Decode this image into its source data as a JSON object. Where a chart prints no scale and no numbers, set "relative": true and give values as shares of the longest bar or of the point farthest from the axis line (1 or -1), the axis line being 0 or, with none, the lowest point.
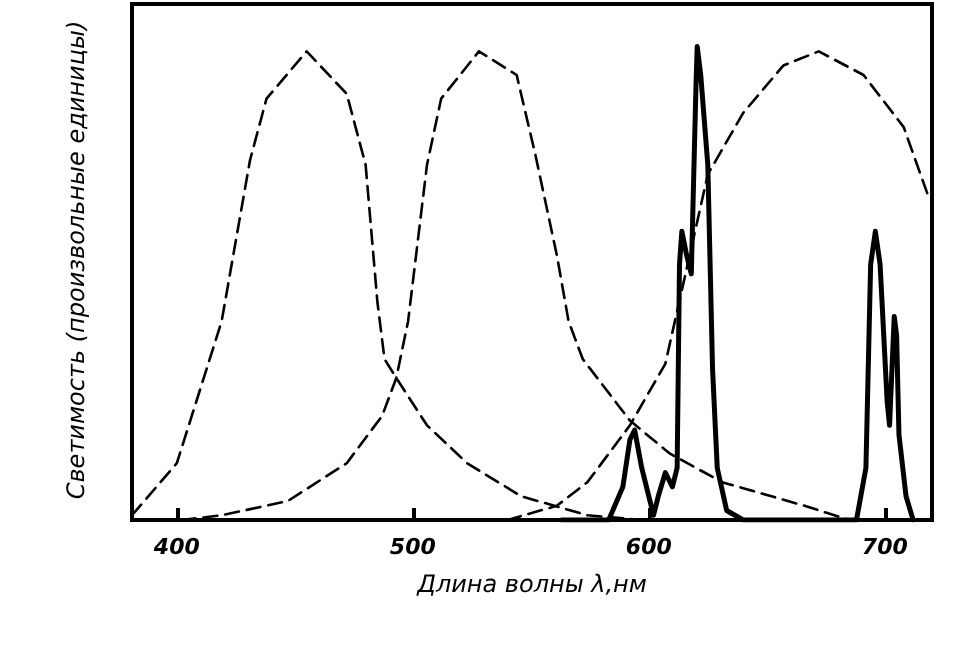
{
  "chart_data": {
    "type": "line",
    "relative": true,
    "xlabel": "Длина волны λ,нм",
    "ylabel": "Светимость (произвольные единицы)",
    "xlim": [
      381,
      720
    ],
    "xticks": [
      400,
      500,
      600,
      700
    ],
    "series": [
      {
        "color": "#000000",
        "line_style": "dashed",
        "x": [
          381,
          400,
          419,
          431,
          438,
          455,
          472,
          480,
          485,
          488,
          493,
          506,
          523,
          546,
          574,
          597
        ],
        "values": [
          0.01,
          0.12,
          0.42,
          0.76,
          0.89,
          0.99,
          0.9,
          0.75,
          0.46,
          0.34,
          0.3,
          0.2,
          0.12,
          0.05,
          0.01,
          0
        ]
      },
      {
        "color": "#000000",
        "line_style": "dashed",
        "x": [
          402,
          419,
          447,
          472,
          487,
          493,
          498,
          506,
          512,
          528,
          544,
          552,
          561,
          566,
          572,
          592,
          609,
          631,
          666,
          685
        ],
        "values": [
          0,
          0.01,
          0.04,
          0.12,
          0.22,
          0.3,
          0.42,
          0.75,
          0.89,
          0.99,
          0.94,
          0.77,
          0.56,
          0.42,
          0.34,
          0.21,
          0.14,
          0.08,
          0.03,
          0
        ]
      },
      {
        "color": "#000000",
        "line_style": "dashed",
        "x": [
          540,
          561,
          574,
          592,
          607,
          625,
          640,
          657,
          672,
          691,
          708,
          718
        ],
        "values": [
          0,
          0.03,
          0.08,
          0.2,
          0.33,
          0.73,
          0.86,
          0.96,
          0.99,
          0.94,
          0.83,
          0.69
        ]
      },
      {
        "color": "#000000",
        "line_style": "solid",
        "x": [
          563,
          583,
          589,
          592,
          594,
          597,
          602,
          604,
          607,
          610,
          612,
          613,
          614,
          616,
          618,
          620,
          620.5,
          622,
          625,
          627,
          629,
          633,
          640,
          688,
          692,
          694,
          696,
          698,
          701,
          702,
          704,
          705,
          706,
          709,
          712
        ],
        "values": [
          0,
          0,
          0.07,
          0.17,
          0.19,
          0.11,
          0.01,
          0.05,
          0.1,
          0.07,
          0.11,
          0.54,
          0.61,
          0.56,
          0.52,
          0.92,
          1,
          0.94,
          0.75,
          0.32,
          0.11,
          0.02,
          0,
          0,
          0.11,
          0.54,
          0.61,
          0.54,
          0.25,
          0.2,
          0.43,
          0.39,
          0.18,
          0.05,
          0
        ]
      }
    ]
  }
}
